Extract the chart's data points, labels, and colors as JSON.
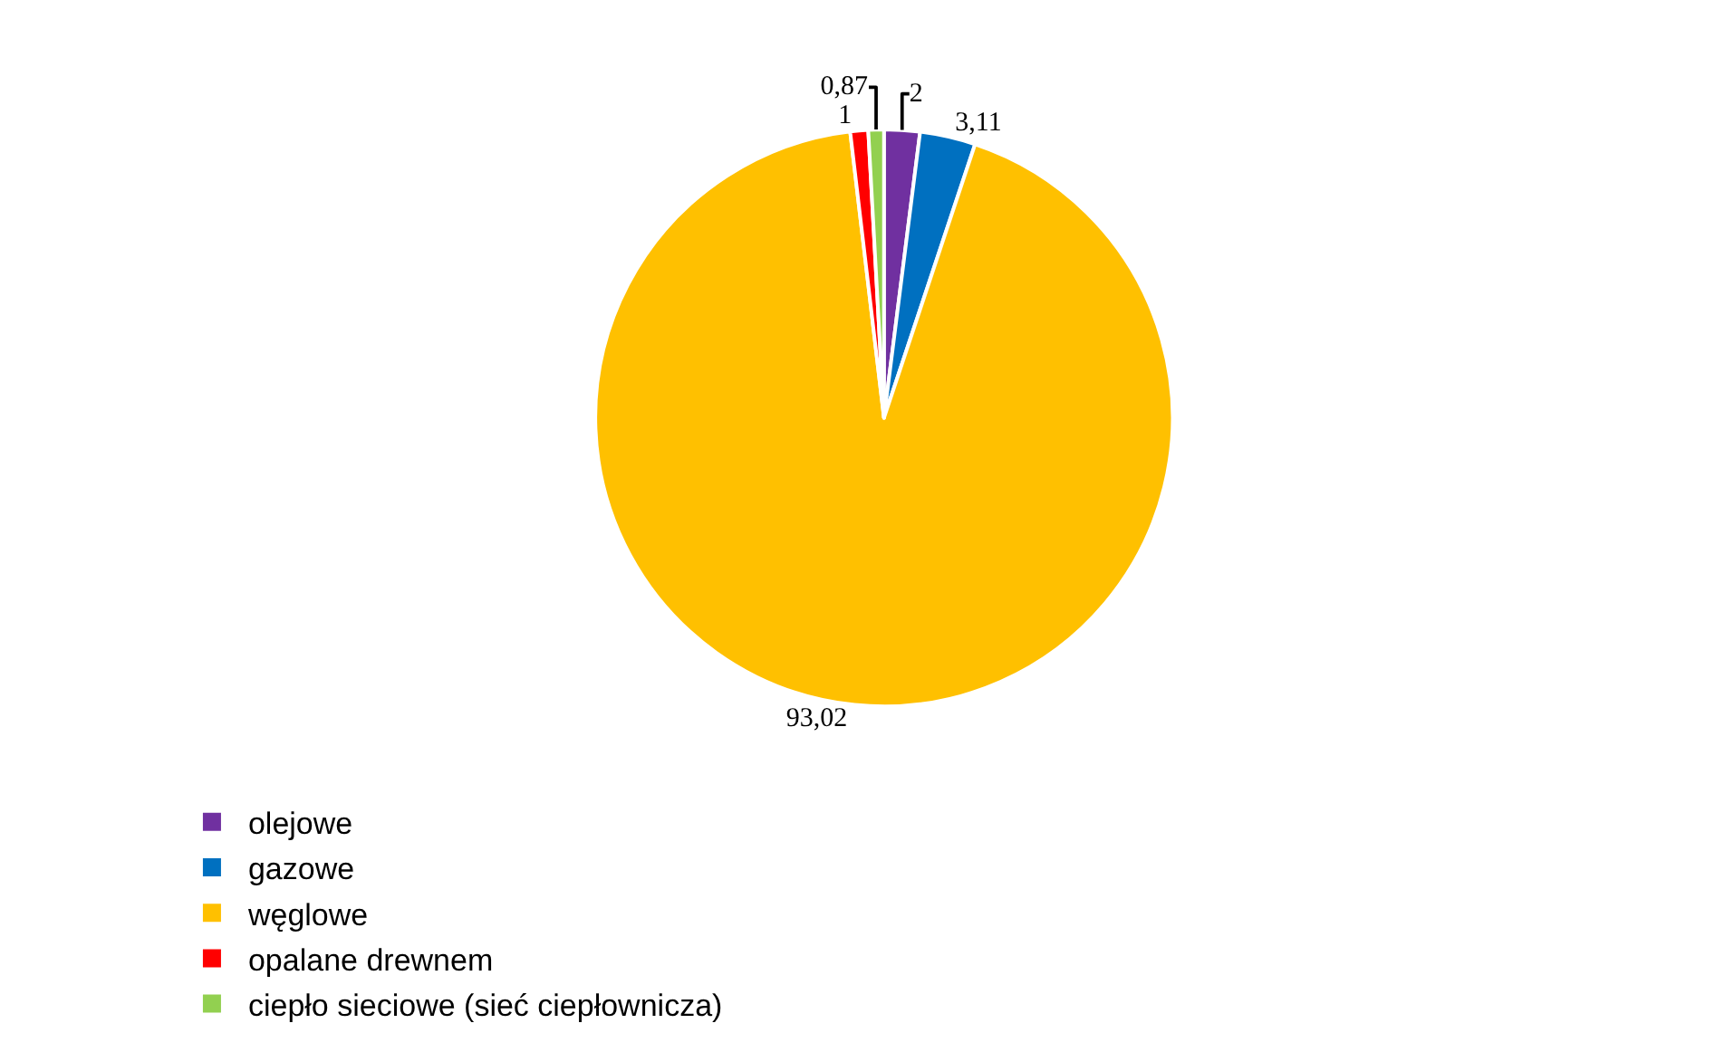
{
  "chart_data": {
    "type": "pie",
    "categories": [
      "olejowe",
      "gazowe",
      "węglowe",
      "opalane drewnem",
      "ciepło sieciowe (sieć ciepłownicza)"
    ],
    "values": [
      2,
      3.11,
      93.02,
      1,
      0.87
    ],
    "value_labels": [
      "2",
      "3,11",
      "93,02",
      "1",
      "0,87"
    ],
    "colors": [
      "#7030a0",
      "#0070c0",
      "#ffc000",
      "#ff0000",
      "#92d050"
    ],
    "legend": "bottom"
  }
}
